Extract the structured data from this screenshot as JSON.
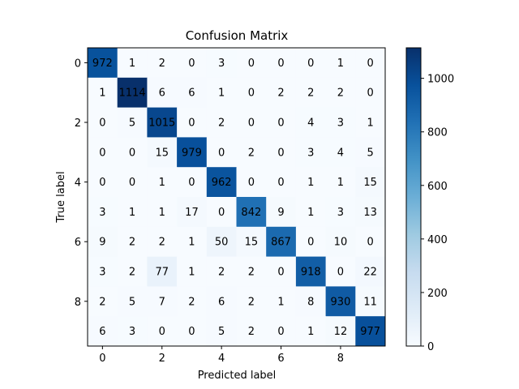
{
  "chart_data": {
    "type": "heatmap",
    "title": "Confusion Matrix",
    "xlabel": "Predicted label",
    "ylabel": "True label",
    "x_categories": [
      0,
      1,
      2,
      3,
      4,
      5,
      6,
      7,
      8,
      9
    ],
    "y_categories": [
      0,
      1,
      2,
      3,
      4,
      5,
      6,
      7,
      8,
      9
    ],
    "x_tick_labels": [
      "0",
      "2",
      "4",
      "6",
      "8"
    ],
    "x_tick_values": [
      0,
      2,
      4,
      6,
      8
    ],
    "y_tick_labels": [
      "0",
      "2",
      "4",
      "6",
      "8"
    ],
    "y_tick_values": [
      0,
      2,
      4,
      6,
      8
    ],
    "values": [
      [
        972,
        1,
        2,
        0,
        3,
        0,
        0,
        0,
        1,
        0
      ],
      [
        1,
        1114,
        6,
        6,
        1,
        0,
        2,
        2,
        2,
        0
      ],
      [
        0,
        5,
        1015,
        0,
        2,
        0,
        0,
        4,
        3,
        1
      ],
      [
        0,
        0,
        15,
        979,
        0,
        2,
        0,
        3,
        4,
        5
      ],
      [
        0,
        0,
        1,
        0,
        962,
        0,
        0,
        1,
        1,
        15
      ],
      [
        3,
        1,
        1,
        17,
        0,
        842,
        9,
        1,
        3,
        13
      ],
      [
        9,
        2,
        2,
        1,
        50,
        15,
        867,
        0,
        10,
        0
      ],
      [
        3,
        2,
        77,
        1,
        2,
        2,
        0,
        918,
        0,
        22
      ],
      [
        2,
        5,
        7,
        2,
        6,
        2,
        1,
        8,
        930,
        11
      ],
      [
        6,
        3,
        0,
        0,
        5,
        2,
        0,
        1,
        12,
        977
      ]
    ],
    "colormap": "Blues",
    "vmin": 0,
    "vmax": 1114,
    "colorbar_ticks": [
      0,
      200,
      400,
      600,
      800,
      1000
    ],
    "colorbar_tick_labels": [
      "0",
      "200",
      "400",
      "600",
      "800",
      "1000"
    ],
    "text_color_light": "#ffffff",
    "text_color_dark": "#000000",
    "grid": false
  }
}
